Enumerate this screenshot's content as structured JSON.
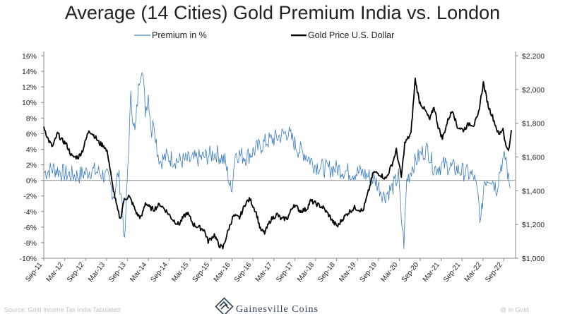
{
  "chart_data": {
    "type": "line",
    "title": "Average (14 Cities) Gold Premium India vs. London",
    "series": [
      {
        "name": "Premium in %",
        "axis": "left",
        "color": "#3a7cc2",
        "points": [
          [
            2011.67,
            1.0
          ],
          [
            2011.9,
            1.5
          ],
          [
            2012.2,
            0.8
          ],
          [
            2012.5,
            0.6
          ],
          [
            2012.8,
            1.3
          ],
          [
            2013.0,
            1.0
          ],
          [
            2013.2,
            0.3
          ],
          [
            2013.35,
            -2.0
          ],
          [
            2013.45,
            1.0
          ],
          [
            2013.55,
            -3.0
          ],
          [
            2013.6,
            -8.5
          ],
          [
            2013.68,
            2.0
          ],
          [
            2013.75,
            10.5
          ],
          [
            2013.85,
            6.0
          ],
          [
            2013.95,
            13.0
          ],
          [
            2014.02,
            15.0
          ],
          [
            2014.1,
            9.0
          ],
          [
            2014.17,
            11.0
          ],
          [
            2014.25,
            6.0
          ],
          [
            2014.3,
            8.0
          ],
          [
            2014.38,
            4.0
          ],
          [
            2014.45,
            2.5
          ],
          [
            2014.6,
            3.0
          ],
          [
            2014.9,
            2.5
          ],
          [
            2015.2,
            2.6
          ],
          [
            2015.5,
            3.0
          ],
          [
            2015.8,
            3.5
          ],
          [
            2016.0,
            2.5
          ],
          [
            2016.1,
            0.0
          ],
          [
            2016.15,
            -1.5
          ],
          [
            2016.25,
            3.5
          ],
          [
            2016.5,
            3.0
          ],
          [
            2016.75,
            4.0
          ],
          [
            2017.0,
            5.0
          ],
          [
            2017.25,
            5.5
          ],
          [
            2017.5,
            6.2
          ],
          [
            2017.75,
            4.0
          ],
          [
            2017.9,
            3.5
          ],
          [
            2018.15,
            2.0
          ],
          [
            2018.4,
            1.5
          ],
          [
            2018.7,
            1.5
          ],
          [
            2019.0,
            1.0
          ],
          [
            2019.25,
            1.0
          ],
          [
            2019.45,
            0.5
          ],
          [
            2019.6,
            0.0
          ],
          [
            2019.8,
            -2.0
          ],
          [
            2020.0,
            -1.0
          ],
          [
            2020.15,
            0.5
          ],
          [
            2020.22,
            -5.0
          ],
          [
            2020.28,
            -8.0
          ],
          [
            2020.35,
            0.0
          ],
          [
            2020.5,
            2.0
          ],
          [
            2020.7,
            3.5
          ],
          [
            2020.85,
            4.0
          ],
          [
            2021.0,
            1.5
          ],
          [
            2021.25,
            2.0
          ],
          [
            2021.5,
            1.5
          ],
          [
            2021.75,
            1.0
          ],
          [
            2021.95,
            0.5
          ],
          [
            2022.05,
            -2.0
          ],
          [
            2022.12,
            -5.5
          ],
          [
            2022.2,
            0.0
          ],
          [
            2022.35,
            0.5
          ],
          [
            2022.5,
            -1.0
          ],
          [
            2022.6,
            2.0
          ],
          [
            2022.72,
            3.0
          ],
          [
            2022.78,
            0.0
          ],
          [
            2022.82,
            -1.0
          ]
        ]
      },
      {
        "name": "Gold Price U.S. Dollar",
        "axis": "right",
        "color": "#000000",
        "points": [
          [
            2011.67,
            1780
          ],
          [
            2011.78,
            1700
          ],
          [
            2011.88,
            1660
          ],
          [
            2012.0,
            1740
          ],
          [
            2012.1,
            1700
          ],
          [
            2012.2,
            1680
          ],
          [
            2012.35,
            1600
          ],
          [
            2012.5,
            1600
          ],
          [
            2012.6,
            1640
          ],
          [
            2012.75,
            1760
          ],
          [
            2012.9,
            1720
          ],
          [
            2013.0,
            1680
          ],
          [
            2013.1,
            1670
          ],
          [
            2013.2,
            1620
          ],
          [
            2013.3,
            1450
          ],
          [
            2013.42,
            1300
          ],
          [
            2013.5,
            1230
          ],
          [
            2013.58,
            1340
          ],
          [
            2013.7,
            1370
          ],
          [
            2013.8,
            1320
          ],
          [
            2013.9,
            1260
          ],
          [
            2014.0,
            1240
          ],
          [
            2014.1,
            1330
          ],
          [
            2014.2,
            1300
          ],
          [
            2014.3,
            1290
          ],
          [
            2014.45,
            1320
          ],
          [
            2014.6,
            1280
          ],
          [
            2014.75,
            1230
          ],
          [
            2014.9,
            1200
          ],
          [
            2015.0,
            1240
          ],
          [
            2015.1,
            1270
          ],
          [
            2015.25,
            1200
          ],
          [
            2015.4,
            1180
          ],
          [
            2015.5,
            1170
          ],
          [
            2015.6,
            1100
          ],
          [
            2015.75,
            1140
          ],
          [
            2015.85,
            1080
          ],
          [
            2015.95,
            1060
          ],
          [
            2016.1,
            1180
          ],
          [
            2016.2,
            1250
          ],
          [
            2016.35,
            1240
          ],
          [
            2016.5,
            1330
          ],
          [
            2016.6,
            1350
          ],
          [
            2016.75,
            1270
          ],
          [
            2016.85,
            1170
          ],
          [
            2016.95,
            1150
          ],
          [
            2017.1,
            1230
          ],
          [
            2017.25,
            1260
          ],
          [
            2017.35,
            1230
          ],
          [
            2017.5,
            1240
          ],
          [
            2017.65,
            1320
          ],
          [
            2017.8,
            1280
          ],
          [
            2017.95,
            1290
          ],
          [
            2018.05,
            1340
          ],
          [
            2018.2,
            1320
          ],
          [
            2018.35,
            1300
          ],
          [
            2018.5,
            1250
          ],
          [
            2018.6,
            1210
          ],
          [
            2018.7,
            1190
          ],
          [
            2018.8,
            1230
          ],
          [
            2018.95,
            1270
          ],
          [
            2019.1,
            1300
          ],
          [
            2019.3,
            1280
          ],
          [
            2019.45,
            1410
          ],
          [
            2019.55,
            1510
          ],
          [
            2019.7,
            1500
          ],
          [
            2019.85,
            1470
          ],
          [
            2020.0,
            1560
          ],
          [
            2020.1,
            1640
          ],
          [
            2020.22,
            1480
          ],
          [
            2020.3,
            1680
          ],
          [
            2020.45,
            1740
          ],
          [
            2020.55,
            2060
          ],
          [
            2020.65,
            1930
          ],
          [
            2020.8,
            1870
          ],
          [
            2020.9,
            1820
          ],
          [
            2021.0,
            1900
          ],
          [
            2021.1,
            1780
          ],
          [
            2021.2,
            1710
          ],
          [
            2021.35,
            1830
          ],
          [
            2021.45,
            1880
          ],
          [
            2021.55,
            1780
          ],
          [
            2021.7,
            1760
          ],
          [
            2021.85,
            1800
          ],
          [
            2021.95,
            1790
          ],
          [
            2022.05,
            1840
          ],
          [
            2022.18,
            2040
          ],
          [
            2022.3,
            1900
          ],
          [
            2022.4,
            1840
          ],
          [
            2022.55,
            1730
          ],
          [
            2022.65,
            1770
          ],
          [
            2022.72,
            1660
          ],
          [
            2022.8,
            1650
          ],
          [
            2022.85,
            1760
          ]
        ]
      }
    ],
    "y_left": {
      "range": [
        -10,
        16
      ],
      "ticks": [
        16,
        14,
        12,
        10,
        8,
        6,
        4,
        2,
        0,
        -2,
        -4,
        -6,
        -8,
        -10
      ],
      "tick_labels": [
        "16%",
        "14%",
        "12%",
        "10%",
        "8%",
        "6%",
        "4%",
        "2%",
        "0%",
        "-2%",
        "-4%",
        "-6%",
        "-8%",
        "-10%"
      ]
    },
    "y_right": {
      "range": [
        1000,
        2200
      ],
      "ticks": [
        2200,
        2000,
        1800,
        1600,
        1400,
        1200,
        1000
      ],
      "tick_labels": [
        "$2,200",
        "$2,000",
        "$1,800",
        "$1,600",
        "$1,400",
        "$1,200",
        "$1,000"
      ]
    },
    "x_axis": {
      "range": [
        2011.67,
        2022.95
      ],
      "ticks": [
        2011.67,
        2012.17,
        2012.67,
        2013.17,
        2013.67,
        2014.17,
        2014.67,
        2015.17,
        2015.67,
        2016.17,
        2016.67,
        2017.17,
        2017.67,
        2018.17,
        2018.67,
        2019.17,
        2019.67,
        2020.17,
        2020.67,
        2021.17,
        2021.67,
        2022.17,
        2022.67
      ],
      "tick_labels": [
        "Sep-11",
        "Mar-12",
        "Sep-12",
        "Mar-13",
        "Sep-13",
        "Mar-14",
        "Sep-14",
        "Mar-15",
        "Sep-15",
        "Mar-16",
        "Sep-16",
        "Mar-17",
        "Sep-17",
        "Mar-18",
        "Sep-18",
        "Mar-19",
        "Sep-19",
        "Mar-20",
        "Sep-20",
        "Mar-21",
        "Sep-21",
        "Mar-22",
        "Sep-22"
      ]
    },
    "legend": {
      "position": "top",
      "items": [
        "Premium in %",
        "Gold Price U.S. Dollar"
      ]
    }
  },
  "footer": {
    "brand": "Gainesville Coins",
    "source_text": "Source: Gold Income Tax India Tabulated",
    "credit": "@ In Gold"
  },
  "colors": {
    "premium": "#3a7cc2",
    "gold": "#000000",
    "axis": "#888888",
    "logo": "#2d3e57"
  }
}
